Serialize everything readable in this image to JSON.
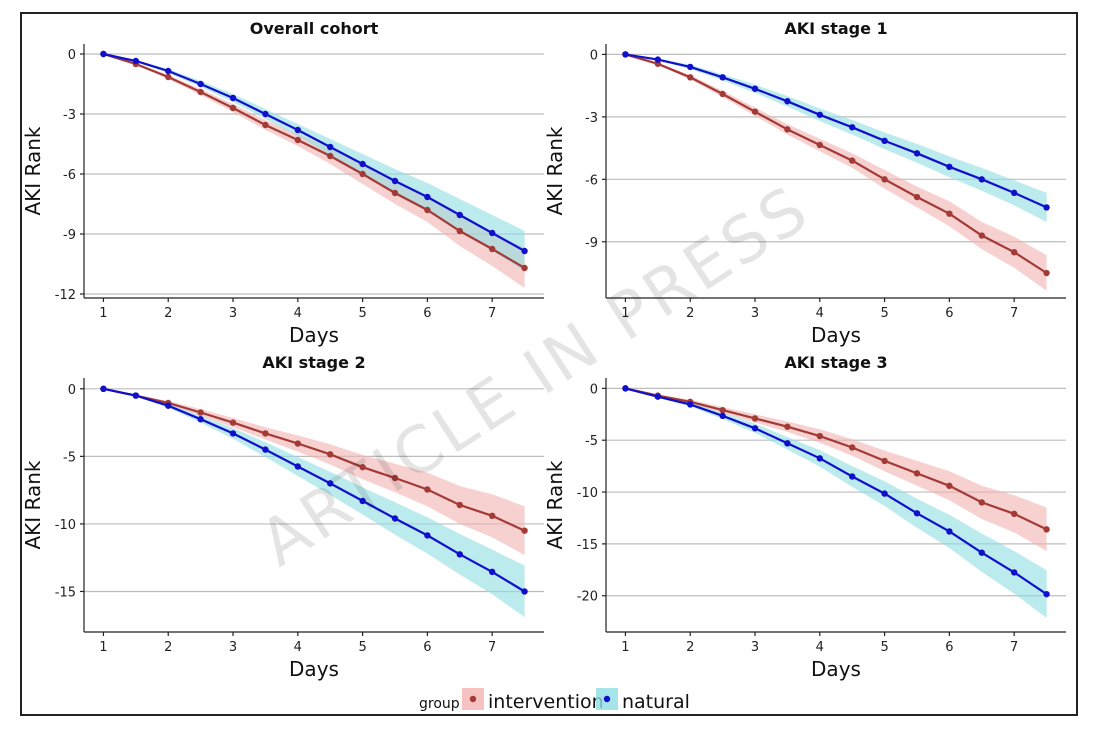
{
  "watermark": "ARTICLE IN PRESS",
  "legend": {
    "title": "group",
    "items": [
      {
        "label": "intervention",
        "line_color": "#a33a36",
        "band_color": "#f2b3b1"
      },
      {
        "label": "natural",
        "line_color": "#1010cc",
        "band_color": "#8fdde3"
      }
    ]
  },
  "chart_data": [
    {
      "type": "line",
      "title": "Overall cohort",
      "xlabel": "Days",
      "ylabel": "AKI Rank",
      "xticks": [
        1,
        2,
        3,
        4,
        5,
        6,
        7
      ],
      "yticks": [
        0,
        -3,
        -6,
        -9,
        -12
      ],
      "xlim": [
        0.7,
        7.8
      ],
      "ylim": [
        -12.2,
        0.5
      ],
      "x": [
        1,
        1.5,
        2,
        2.5,
        3,
        3.5,
        4,
        4.5,
        5,
        5.5,
        6,
        6.5,
        7,
        7.5
      ],
      "series": [
        {
          "name": "intervention",
          "values": [
            0,
            -0.5,
            -1.15,
            -1.9,
            -2.7,
            -3.55,
            -4.3,
            -5.1,
            -6.0,
            -6.95,
            -7.8,
            -8.85,
            -9.75,
            -10.7
          ],
          "lower": [
            0,
            -0.55,
            -1.25,
            -2.05,
            -2.9,
            -3.8,
            -4.6,
            -5.5,
            -6.5,
            -7.5,
            -8.4,
            -9.6,
            -10.6,
            -11.7
          ],
          "upper": [
            0,
            -0.45,
            -1.05,
            -1.75,
            -2.5,
            -3.3,
            -4.0,
            -4.7,
            -5.5,
            -6.4,
            -7.2,
            -8.1,
            -8.9,
            -9.7
          ]
        },
        {
          "name": "natural",
          "values": [
            0,
            -0.35,
            -0.85,
            -1.5,
            -2.2,
            -3.0,
            -3.8,
            -4.65,
            -5.5,
            -6.35,
            -7.15,
            -8.05,
            -8.95,
            -9.85
          ],
          "lower": [
            0,
            -0.4,
            -0.95,
            -1.65,
            -2.4,
            -3.25,
            -4.1,
            -5.05,
            -6.0,
            -6.95,
            -7.85,
            -8.85,
            -9.85,
            -10.85
          ],
          "upper": [
            0,
            -0.3,
            -0.75,
            -1.35,
            -2.0,
            -2.75,
            -3.5,
            -4.25,
            -5.0,
            -5.75,
            -6.45,
            -7.25,
            -8.05,
            -8.85
          ]
        }
      ]
    },
    {
      "type": "line",
      "title": "AKI stage 1",
      "xlabel": "Days",
      "ylabel": "AKI Rank",
      "xticks": [
        1,
        2,
        3,
        4,
        5,
        6,
        7
      ],
      "yticks": [
        0,
        -3,
        -6,
        -9
      ],
      "xlim": [
        0.7,
        7.8
      ],
      "ylim": [
        -11.7,
        0.5
      ],
      "x": [
        1,
        1.5,
        2,
        2.5,
        3,
        3.5,
        4,
        4.5,
        5,
        5.5,
        6,
        6.5,
        7,
        7.5
      ],
      "series": [
        {
          "name": "intervention",
          "values": [
            0,
            -0.45,
            -1.1,
            -1.9,
            -2.75,
            -3.6,
            -4.35,
            -5.1,
            -6.0,
            -6.85,
            -7.65,
            -8.7,
            -9.5,
            -10.5
          ],
          "lower": [
            0,
            -0.5,
            -1.2,
            -2.05,
            -2.95,
            -3.85,
            -4.65,
            -5.45,
            -6.45,
            -7.35,
            -8.25,
            -9.35,
            -10.25,
            -11.35
          ],
          "upper": [
            0,
            -0.4,
            -1.0,
            -1.75,
            -2.55,
            -3.35,
            -4.05,
            -4.75,
            -5.55,
            -6.35,
            -7.05,
            -8.05,
            -8.75,
            -9.65
          ]
        },
        {
          "name": "natural",
          "values": [
            0,
            -0.25,
            -0.6,
            -1.1,
            -1.65,
            -2.25,
            -2.9,
            -3.5,
            -4.15,
            -4.75,
            -5.4,
            -6.0,
            -6.65,
            -7.35
          ],
          "lower": [
            0,
            -0.3,
            -0.7,
            -1.25,
            -1.85,
            -2.5,
            -3.2,
            -3.85,
            -4.55,
            -5.2,
            -5.9,
            -6.55,
            -7.25,
            -8.05
          ],
          "upper": [
            0,
            -0.2,
            -0.5,
            -0.95,
            -1.45,
            -2.0,
            -2.6,
            -3.15,
            -3.75,
            -4.3,
            -4.9,
            -5.45,
            -6.05,
            -6.65
          ]
        }
      ]
    },
    {
      "type": "line",
      "title": "AKI stage 2",
      "xlabel": "Days",
      "ylabel": "AKI Rank",
      "xticks": [
        1,
        2,
        3,
        4,
        5,
        6,
        7
      ],
      "yticks": [
        0,
        -5,
        -10,
        -15
      ],
      "xlim": [
        0.7,
        7.8
      ],
      "ylim": [
        -18.0,
        0.8
      ],
      "x": [
        1,
        1.5,
        2,
        2.5,
        3,
        3.5,
        4,
        4.5,
        5,
        5.5,
        6,
        6.5,
        7,
        7.5
      ],
      "series": [
        {
          "name": "intervention",
          "values": [
            0,
            -0.5,
            -1.05,
            -1.75,
            -2.5,
            -3.3,
            -4.05,
            -4.85,
            -5.8,
            -6.6,
            -7.45,
            -8.6,
            -9.4,
            -10.5
          ],
          "lower": [
            0,
            -0.55,
            -1.2,
            -2.0,
            -2.85,
            -3.75,
            -4.65,
            -5.6,
            -6.7,
            -7.65,
            -8.7,
            -10.0,
            -11.0,
            -12.3
          ],
          "upper": [
            0,
            -0.45,
            -0.9,
            -1.5,
            -2.15,
            -2.85,
            -3.45,
            -4.1,
            -4.9,
            -5.55,
            -6.2,
            -7.2,
            -7.8,
            -8.7
          ]
        },
        {
          "name": "natural",
          "values": [
            0,
            -0.5,
            -1.25,
            -2.25,
            -3.3,
            -4.5,
            -5.75,
            -7.0,
            -8.3,
            -9.6,
            -10.85,
            -12.25,
            -13.55,
            -15.0
          ],
          "lower": [
            0,
            -0.55,
            -1.4,
            -2.5,
            -3.7,
            -5.05,
            -6.45,
            -7.85,
            -9.3,
            -10.8,
            -12.2,
            -13.75,
            -15.2,
            -16.9
          ],
          "upper": [
            0,
            -0.45,
            -1.1,
            -2.0,
            -2.9,
            -3.95,
            -5.05,
            -6.15,
            -7.3,
            -8.4,
            -9.5,
            -10.75,
            -11.9,
            -13.1
          ]
        }
      ]
    },
    {
      "type": "line",
      "title": "AKI stage 3",
      "xlabel": "Days",
      "ylabel": "AKI Rank",
      "xticks": [
        1,
        2,
        3,
        4,
        5,
        6,
        7
      ],
      "yticks": [
        0,
        -5,
        -10,
        -15,
        -20
      ],
      "xlim": [
        0.7,
        7.8
      ],
      "ylim": [
        -23.5,
        1.0
      ],
      "x": [
        1,
        1.5,
        2,
        2.5,
        3,
        3.5,
        4,
        4.5,
        5,
        5.5,
        6,
        6.5,
        7,
        7.5
      ],
      "series": [
        {
          "name": "intervention",
          "values": [
            0,
            -0.7,
            -1.3,
            -2.1,
            -2.9,
            -3.7,
            -4.6,
            -5.7,
            -7.0,
            -8.2,
            -9.4,
            -11.0,
            -12.1,
            -13.6
          ],
          "lower": [
            0,
            -0.8,
            -1.5,
            -2.4,
            -3.3,
            -4.2,
            -5.25,
            -6.5,
            -8.0,
            -9.4,
            -10.8,
            -12.6,
            -13.9,
            -15.7
          ],
          "upper": [
            0,
            -0.6,
            -1.1,
            -1.8,
            -2.5,
            -3.2,
            -3.95,
            -4.9,
            -6.0,
            -7.0,
            -8.0,
            -9.4,
            -10.3,
            -11.5
          ]
        },
        {
          "name": "natural",
          "values": [
            0,
            -0.8,
            -1.55,
            -2.65,
            -3.85,
            -5.3,
            -6.75,
            -8.5,
            -10.15,
            -12.05,
            -13.8,
            -15.85,
            -17.75,
            -19.85
          ],
          "lower": [
            0,
            -0.9,
            -1.75,
            -2.95,
            -4.3,
            -5.9,
            -7.55,
            -9.5,
            -11.35,
            -13.45,
            -15.4,
            -17.7,
            -19.8,
            -22.15
          ],
          "upper": [
            0,
            -0.7,
            -1.35,
            -2.35,
            -3.4,
            -4.7,
            -5.95,
            -7.5,
            -8.95,
            -10.65,
            -12.2,
            -14.0,
            -15.7,
            -17.55
          ]
        }
      ]
    }
  ]
}
